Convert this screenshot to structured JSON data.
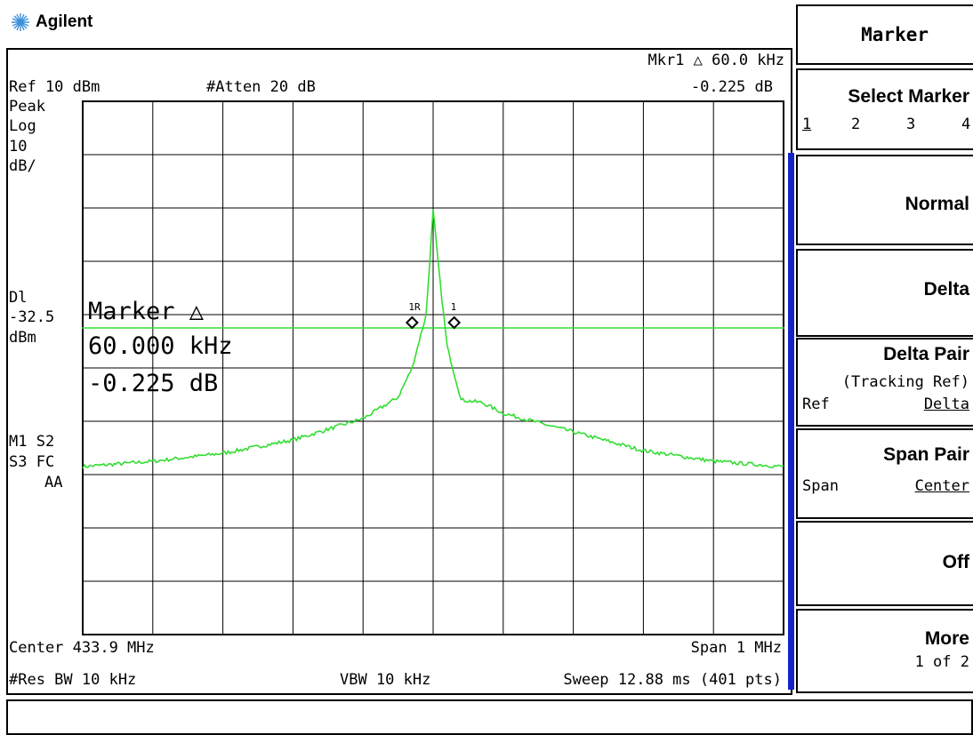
{
  "brand": {
    "logo_text": "Agilent",
    "icon": "agilent-spark-icon"
  },
  "header": {
    "marker_readout_line1": "Mkr1 △  60.0 kHz",
    "marker_readout_line2": "-0.225 dB",
    "ref_level": "Ref 10 dBm",
    "attenuation": "#Atten 20 dB"
  },
  "left_annotations": {
    "detector": "Peak",
    "scale_type": "Log",
    "scale_value": "10",
    "scale_unit": "dB/",
    "dl_label": "Dl",
    "dl_value": "-32.5",
    "dl_unit": "dBm",
    "flags_line1": "M1  S2",
    "flags_line2": "S3  FC",
    "flags_line3": "AA"
  },
  "marker_overlay": {
    "title": "Marker △",
    "freq": "60.000 kHz",
    "amp": "-0.225 dB",
    "ref_marker_label": "1R",
    "delta_marker_label": "1"
  },
  "footer": {
    "center": "Center 433.9 MHz",
    "span": "Span 1 MHz",
    "res_bw": "#Res BW 10 kHz",
    "vbw": "VBW 10 kHz",
    "sweep": "Sweep 12.88 ms (401 pts)"
  },
  "softkeys": {
    "menu_title": "Marker",
    "select_marker": {
      "label": "Select Marker",
      "options": [
        "1",
        "2",
        "3",
        "4"
      ],
      "selected": "1"
    },
    "normal": {
      "label": "Normal"
    },
    "delta": {
      "label": "Delta"
    },
    "delta_pair": {
      "label": "Delta Pair",
      "sub": "(Tracking Ref)",
      "left": "Ref",
      "right": "Delta"
    },
    "span_pair": {
      "label": "Span Pair",
      "left": "Span",
      "right": "Center"
    },
    "off": {
      "label": "Off"
    },
    "more": {
      "label": "More",
      "sub": "1 of 2"
    }
  },
  "colors": {
    "trace": "#33dd33",
    "display_line": "#33dd33",
    "active_bar": "#1424c8"
  },
  "chart_data": {
    "type": "line",
    "xlabel": "",
    "ylabel": "",
    "x_unit": "MHz",
    "y_unit": "dBm",
    "xlim": [
      433.4,
      434.4
    ],
    "ylim": [
      -90,
      10
    ],
    "grid": true,
    "display_line": -32.5,
    "series": [
      {
        "x": [
          433.4,
          433.5,
          433.6,
          433.7,
          433.8,
          433.85,
          433.87,
          433.89,
          433.9,
          433.91,
          433.92,
          433.94,
          433.97,
          434.0,
          434.1,
          434.2,
          434.3,
          434.4
        ],
        "y": [
          -58.5,
          -57.5,
          -56,
          -53.5,
          -49.5,
          -45.5,
          -40,
          -30,
          -10.5,
          -24,
          -36,
          -46,
          -46.5,
          -48.5,
          -52,
          -55.5,
          -57.5,
          -58.5
        ]
      }
    ],
    "markers": [
      {
        "x": 433.87,
        "y": -31.5
      },
      {
        "x": 433.93,
        "y": -31.5
      }
    ]
  }
}
